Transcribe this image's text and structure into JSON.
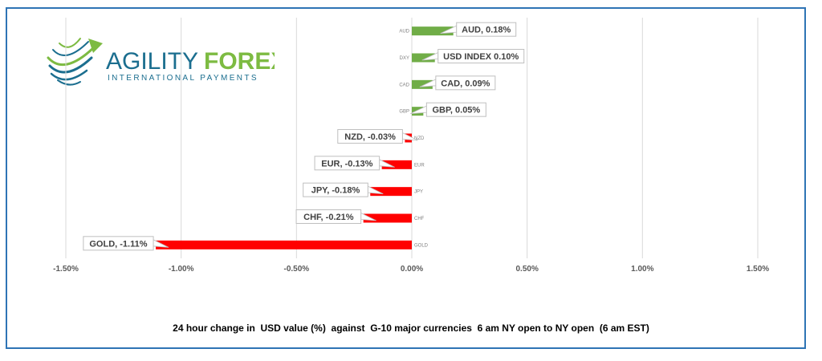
{
  "logo": {
    "brand_left": "AGILITY",
    "brand_right": "FOREX",
    "tagline": "INTERNATIONAL PAYMENTS",
    "color_green": "#7dbb42",
    "color_blue": "#1b6e8f"
  },
  "caption": "24 hour change in  USD value (%)  against  G-10 major currencies  6 am NY open to NY open  (6 am EST)",
  "chart_data": {
    "type": "bar",
    "orientation": "horizontal",
    "categories": [
      "AUD",
      "DXY",
      "CAD",
      "GBP",
      "NZD",
      "EUR",
      "JPY",
      "CHF",
      "GOLD"
    ],
    "values": [
      0.18,
      0.1,
      0.09,
      0.05,
      -0.03,
      -0.13,
      -0.18,
      -0.21,
      -1.11
    ],
    "data_labels": [
      "AUD, 0.18%",
      "USD INDEX 0.10%",
      "CAD, 0.09%",
      "GBP, 0.05%",
      "NZD, -0.03%",
      "EUR, -0.13%",
      "JPY, -0.18%",
      "CHF, -0.21%",
      "GOLD, -1.11%"
    ],
    "x_ticks": [
      "-1.50%",
      "-1.00%",
      "-0.50%",
      "0.00%",
      "0.50%",
      "1.00%",
      "1.50%"
    ],
    "xlim": [
      -1.5,
      1.5
    ],
    "grid": true,
    "legend": "none",
    "colors": {
      "positive": "#70ad47",
      "negative": "#ff0000"
    }
  }
}
